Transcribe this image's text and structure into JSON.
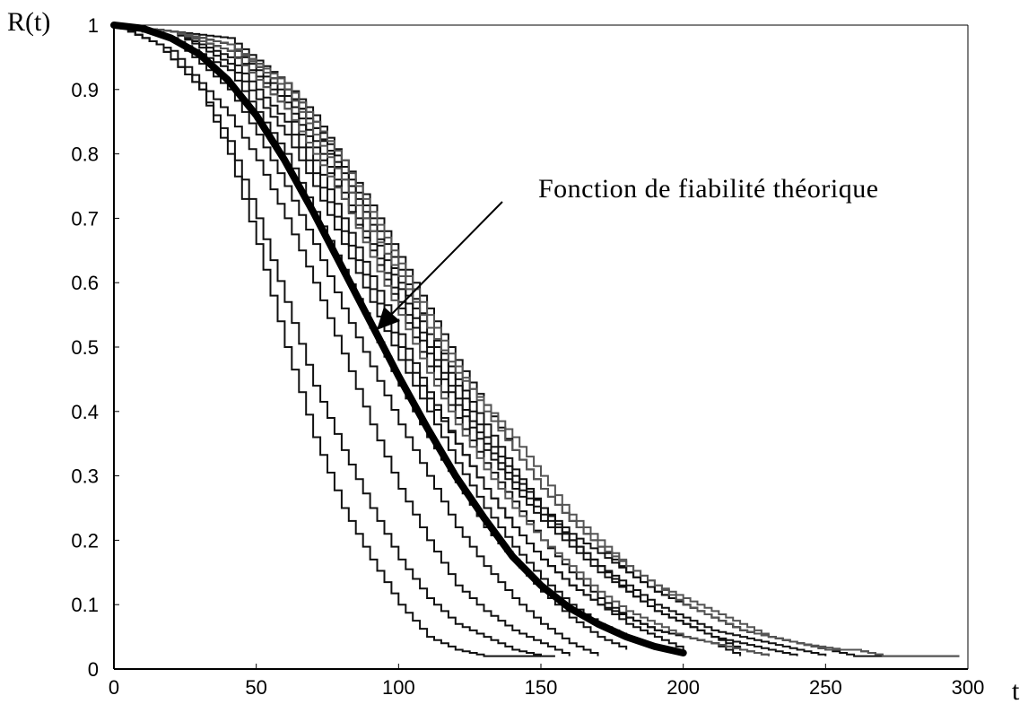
{
  "chart_data": {
    "type": "line",
    "title": "",
    "xlabel": "t",
    "ylabel": "R(t)",
    "xlim": [
      0,
      300
    ],
    "ylim": [
      0,
      1
    ],
    "x_ticks": [
      "0",
      "50",
      "100",
      "150",
      "200",
      "250",
      "300"
    ],
    "y_ticks": [
      "0",
      "0.1",
      "0.2",
      "0.3",
      "0.4",
      "0.5",
      "0.6",
      "0.7",
      "0.8",
      "0.9",
      "1"
    ],
    "grid": false,
    "annotation": {
      "text": "Fonction de fiabilité théorique",
      "points_to": {
        "x": 93,
        "y": 0.54
      }
    },
    "series": [
      {
        "name": "Fonction de fiabilité théorique",
        "style": "thick-smooth",
        "x": [
          0,
          10,
          20,
          30,
          40,
          50,
          60,
          70,
          80,
          90,
          100,
          110,
          120,
          130,
          140,
          150,
          160,
          170,
          180,
          190,
          200
        ],
        "values": [
          1.0,
          0.995,
          0.98,
          0.955,
          0.915,
          0.86,
          0.79,
          0.71,
          0.625,
          0.54,
          0.455,
          0.375,
          0.3,
          0.235,
          0.175,
          0.13,
          0.095,
          0.07,
          0.05,
          0.035,
          0.025
        ]
      },
      {
        "style": "empirical",
        "x": [
          0,
          15,
          30,
          40,
          50,
          60,
          70,
          80,
          90,
          100,
          110,
          120,
          130,
          140,
          150
        ],
        "values": [
          1.0,
          0.97,
          0.9,
          0.8,
          0.66,
          0.5,
          0.36,
          0.25,
          0.17,
          0.1,
          0.05,
          0.03,
          0.02,
          0.02,
          0.02
        ]
      },
      {
        "style": "empirical",
        "x": [
          0,
          15,
          30,
          40,
          50,
          60,
          70,
          80,
          90,
          100,
          110,
          120,
          130,
          140,
          150,
          155
        ],
        "values": [
          1.0,
          0.97,
          0.9,
          0.82,
          0.7,
          0.57,
          0.44,
          0.34,
          0.25,
          0.17,
          0.11,
          0.07,
          0.05,
          0.03,
          0.02,
          0.02
        ]
      },
      {
        "style": "empirical",
        "x": [
          0,
          20,
          40,
          50,
          60,
          70,
          80,
          90,
          100,
          110,
          120,
          130,
          140,
          150,
          160
        ],
        "values": [
          1.0,
          0.96,
          0.86,
          0.79,
          0.7,
          0.6,
          0.49,
          0.38,
          0.28,
          0.2,
          0.13,
          0.09,
          0.06,
          0.04,
          0.02
        ]
      },
      {
        "style": "empirical",
        "x": [
          0,
          20,
          40,
          50,
          60,
          70,
          80,
          90,
          100,
          110,
          120,
          130,
          140,
          150,
          160,
          170
        ],
        "values": [
          1.0,
          0.98,
          0.9,
          0.83,
          0.75,
          0.66,
          0.56,
          0.47,
          0.38,
          0.3,
          0.22,
          0.16,
          0.11,
          0.07,
          0.04,
          0.02
        ]
      },
      {
        "style": "empirical",
        "x": [
          0,
          20,
          40,
          60,
          70,
          80,
          90,
          100,
          110,
          120,
          130,
          140,
          150,
          160,
          170,
          180
        ],
        "values": [
          1.0,
          0.98,
          0.93,
          0.8,
          0.71,
          0.62,
          0.53,
          0.44,
          0.36,
          0.29,
          0.22,
          0.17,
          0.12,
          0.08,
          0.05,
          0.03
        ]
      },
      {
        "style": "empirical",
        "x": [
          0,
          20,
          40,
          60,
          70,
          80,
          90,
          100,
          110,
          120,
          130,
          140,
          150,
          160,
          170,
          180,
          190
        ],
        "values": [
          1.0,
          0.99,
          0.94,
          0.83,
          0.75,
          0.66,
          0.57,
          0.48,
          0.4,
          0.32,
          0.25,
          0.19,
          0.14,
          0.1,
          0.07,
          0.05,
          0.03
        ]
      },
      {
        "style": "empirical",
        "x": [
          0,
          20,
          40,
          60,
          70,
          80,
          90,
          100,
          110,
          120,
          130,
          140,
          150,
          160,
          170,
          180,
          190,
          200
        ],
        "values": [
          1.0,
          0.99,
          0.95,
          0.85,
          0.77,
          0.68,
          0.59,
          0.5,
          0.42,
          0.35,
          0.28,
          0.22,
          0.17,
          0.13,
          0.1,
          0.07,
          0.05,
          0.03
        ]
      },
      {
        "style": "empirical",
        "x": [
          0,
          20,
          40,
          60,
          70,
          80,
          90,
          100,
          110,
          120,
          130,
          140,
          150,
          160,
          170,
          180,
          190,
          200,
          210,
          220
        ],
        "values": [
          1.0,
          0.99,
          0.96,
          0.87,
          0.79,
          0.7,
          0.61,
          0.52,
          0.43,
          0.35,
          0.28,
          0.22,
          0.17,
          0.13,
          0.1,
          0.08,
          0.06,
          0.05,
          0.04,
          0.03
        ]
      },
      {
        "style": "empirical",
        "x": [
          0,
          20,
          40,
          60,
          70,
          80,
          90,
          100,
          110,
          120,
          130,
          140,
          150,
          160,
          170,
          180,
          190,
          200,
          210,
          220
        ],
        "values": [
          1.0,
          0.99,
          0.96,
          0.88,
          0.81,
          0.73,
          0.65,
          0.56,
          0.47,
          0.39,
          0.32,
          0.26,
          0.2,
          0.15,
          0.11,
          0.08,
          0.06,
          0.05,
          0.04,
          0.02
        ]
      },
      {
        "style": "empirical",
        "x": [
          0,
          20,
          40,
          60,
          70,
          80,
          90,
          100,
          110,
          120,
          130,
          140,
          150,
          160,
          170,
          180,
          190,
          200,
          210,
          220,
          230
        ],
        "values": [
          1.0,
          0.99,
          0.97,
          0.89,
          0.82,
          0.74,
          0.66,
          0.57,
          0.49,
          0.41,
          0.34,
          0.28,
          0.23,
          0.19,
          0.15,
          0.12,
          0.09,
          0.07,
          0.05,
          0.03,
          0.02
        ]
      },
      {
        "style": "empirical",
        "x": [
          0,
          20,
          40,
          60,
          70,
          80,
          90,
          100,
          110,
          120,
          130,
          140,
          150,
          160,
          170,
          180,
          190,
          200,
          210,
          220,
          230,
          240
        ],
        "values": [
          1.0,
          0.99,
          0.97,
          0.9,
          0.84,
          0.76,
          0.68,
          0.59,
          0.5,
          0.42,
          0.35,
          0.29,
          0.24,
          0.2,
          0.16,
          0.12,
          0.09,
          0.07,
          0.05,
          0.04,
          0.03,
          0.02
        ]
      },
      {
        "style": "empirical",
        "x": [
          0,
          20,
          40,
          60,
          70,
          80,
          90,
          100,
          110,
          120,
          130,
          140,
          150,
          160,
          170,
          180,
          190,
          200,
          210,
          220,
          230,
          240,
          250,
          260,
          270
        ],
        "values": [
          1.0,
          0.99,
          0.97,
          0.9,
          0.84,
          0.77,
          0.69,
          0.6,
          0.52,
          0.44,
          0.36,
          0.3,
          0.25,
          0.21,
          0.18,
          0.15,
          0.12,
          0.1,
          0.08,
          0.06,
          0.05,
          0.04,
          0.03,
          0.02,
          0.02
        ]
      },
      {
        "style": "empirical",
        "x": [
          0,
          20,
          40,
          60,
          70,
          80,
          90,
          100,
          110,
          120,
          130,
          140,
          150,
          160,
          170,
          180,
          190,
          200,
          210,
          220,
          230,
          240,
          250
        ],
        "values": [
          1.0,
          0.99,
          0.97,
          0.91,
          0.85,
          0.78,
          0.7,
          0.62,
          0.53,
          0.45,
          0.38,
          0.31,
          0.25,
          0.2,
          0.16,
          0.13,
          0.1,
          0.08,
          0.06,
          0.05,
          0.04,
          0.03,
          0.02
        ]
      },
      {
        "style": "empirical",
        "x": [
          0,
          20,
          40,
          60,
          70,
          80,
          90,
          100,
          110,
          120,
          130,
          140,
          150,
          160,
          170,
          180,
          190,
          200,
          210,
          220,
          230,
          240,
          250,
          260,
          270,
          280,
          290,
          297
        ],
        "values": [
          1.0,
          0.99,
          0.98,
          0.91,
          0.86,
          0.79,
          0.72,
          0.64,
          0.56,
          0.48,
          0.41,
          0.34,
          0.28,
          0.23,
          0.19,
          0.15,
          0.12,
          0.1,
          0.08,
          0.06,
          0.05,
          0.04,
          0.03,
          0.03,
          0.02,
          0.02,
          0.02,
          0.02
        ]
      },
      {
        "style": "empirical-gray",
        "x": [
          0,
          20,
          40,
          60,
          80,
          90,
          100,
          110,
          120,
          130,
          140,
          150,
          160,
          170,
          180,
          190,
          200,
          210,
          220,
          230,
          240,
          255
        ],
        "values": [
          1.0,
          0.99,
          0.97,
          0.9,
          0.76,
          0.68,
          0.61,
          0.53,
          0.46,
          0.41,
          0.36,
          0.3,
          0.24,
          0.2,
          0.16,
          0.13,
          0.11,
          0.09,
          0.07,
          0.05,
          0.04,
          0.03
        ]
      },
      {
        "style": "empirical-gray",
        "x": [
          0,
          20,
          40,
          60,
          80,
          90,
          100,
          110,
          120,
          130,
          140,
          150,
          160,
          170,
          180,
          190,
          200,
          210,
          220,
          230,
          240,
          250,
          260,
          270,
          280,
          290,
          297
        ],
        "values": [
          1.0,
          0.99,
          0.97,
          0.91,
          0.79,
          0.71,
          0.63,
          0.55,
          0.47,
          0.4,
          0.34,
          0.28,
          0.23,
          0.19,
          0.16,
          0.13,
          0.1,
          0.08,
          0.06,
          0.05,
          0.04,
          0.03,
          0.03,
          0.02,
          0.02,
          0.02,
          0.02
        ]
      },
      {
        "style": "empirical-gray",
        "x": [
          0,
          20,
          40,
          60,
          80,
          90,
          100,
          110,
          120,
          130,
          140,
          150,
          160,
          170,
          180,
          190,
          200,
          210,
          220,
          230
        ],
        "values": [
          1.0,
          0.99,
          0.96,
          0.87,
          0.73,
          0.64,
          0.55,
          0.46,
          0.38,
          0.31,
          0.25,
          0.2,
          0.16,
          0.12,
          0.09,
          0.07,
          0.05,
          0.04,
          0.03,
          0.02
        ]
      }
    ]
  }
}
